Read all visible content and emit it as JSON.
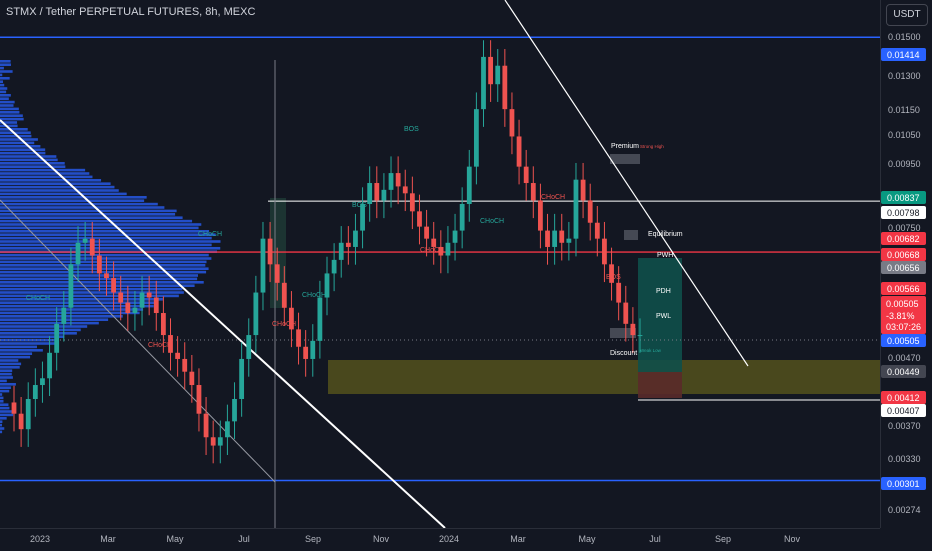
{
  "header": {
    "title": "STMX / Tether PERPETUAL FUTURES, 8h, MEXC",
    "currency": "USDT"
  },
  "colors": {
    "background": "#131722",
    "up": "#26a69a",
    "down": "#ef5350",
    "volume_profile": "#2962ff",
    "level_blue": "#2962ff",
    "level_red": "#f23645",
    "zone": "#5c5a1c"
  },
  "chart_data": {
    "type": "candlestick",
    "ylim": [
      0.00255,
      0.0161
    ],
    "y_scale": "log",
    "x_ticks": [
      "2023",
      "Mar",
      "May",
      "Jul",
      "Sep",
      "Nov",
      "2024",
      "Mar",
      "May",
      "Jul",
      "Sep",
      "Nov"
    ],
    "y_ticks": [
      "0.01500",
      "0.01300",
      "0.01150",
      "0.01050",
      "0.00950",
      "0.00750",
      "0.00470",
      "0.00370",
      "0.00330",
      "0.00274"
    ],
    "price_labels": [
      {
        "value": "0.01414",
        "color": "#2962ff"
      },
      {
        "value": "0.00837",
        "color": "#089981"
      },
      {
        "value": "0.00798",
        "color": "#ffffff"
      },
      {
        "value": "0.00682",
        "color": "#f23645"
      },
      {
        "value": "0.00668",
        "color": "#f23645"
      },
      {
        "value": "0.00656",
        "color": "#787b86"
      },
      {
        "value": "0.00566",
        "color": "#f23645"
      },
      {
        "value": "0.00505",
        "color": "#2962ff"
      },
      {
        "value": "0.00449",
        "color": "#434651"
      },
      {
        "value": "0.00412",
        "color": "#f23645"
      },
      {
        "value": "0.00407",
        "color": "#ffffff"
      },
      {
        "value": "0.00301",
        "color": "#2962ff"
      }
    ],
    "last_price": {
      "value": "0.00505",
      "change": "-3.81%",
      "countdown": "03:07:26"
    },
    "levels": [
      {
        "name": "range-high",
        "value": 0.01414
      },
      {
        "name": "range-low",
        "value": 0.00301
      },
      {
        "name": "white-level",
        "value": 0.00798
      },
      {
        "name": "red-level",
        "value": 0.00668
      }
    ],
    "annotations": {
      "bos": "BOS",
      "choch": "CHoCH",
      "premium": "Premium",
      "equilibrium": "Equilibrium",
      "discount": "Discount",
      "pwh": "PWH",
      "pdh": "PDH",
      "pwl": "PWL",
      "strong_high": "Strong High",
      "weak_low": "Weak Low"
    },
    "series": [
      {
        "values": [
          0.0038,
          0.0036,
          0.004,
          0.0042,
          0.0043,
          0.0047,
          0.0052,
          0.0055,
          0.0064,
          0.0069,
          0.007,
          0.0066,
          0.0062,
          0.0061,
          0.0058,
          0.0056,
          0.0054,
          0.0055,
          0.0058,
          0.0057,
          0.0054,
          0.005,
          0.0047,
          0.0046,
          0.0044,
          0.0042,
          0.0038,
          0.0035,
          0.0034,
          0.0035,
          0.0037,
          0.004,
          0.0046,
          0.005,
          0.0058,
          0.007,
          0.0064,
          0.006,
          0.0055,
          0.0051,
          0.0048,
          0.0046,
          0.0049,
          0.0057,
          0.0062,
          0.0065,
          0.0069,
          0.0068,
          0.0072,
          0.0079,
          0.0085,
          0.008,
          0.0083,
          0.0088,
          0.0084,
          0.0082,
          0.0077,
          0.0073,
          0.007,
          0.0068,
          0.0066,
          0.0069,
          0.0072,
          0.0079,
          0.009,
          0.011,
          0.0132,
          0.012,
          0.0128,
          0.011,
          0.01,
          0.009,
          0.0085,
          0.008,
          0.0072,
          0.0068,
          0.0072,
          0.0069,
          0.007,
          0.0086,
          0.008,
          0.0074,
          0.007,
          0.0064,
          0.006,
          0.0056,
          0.0052,
          0.005,
          0.005
        ]
      }
    ]
  }
}
